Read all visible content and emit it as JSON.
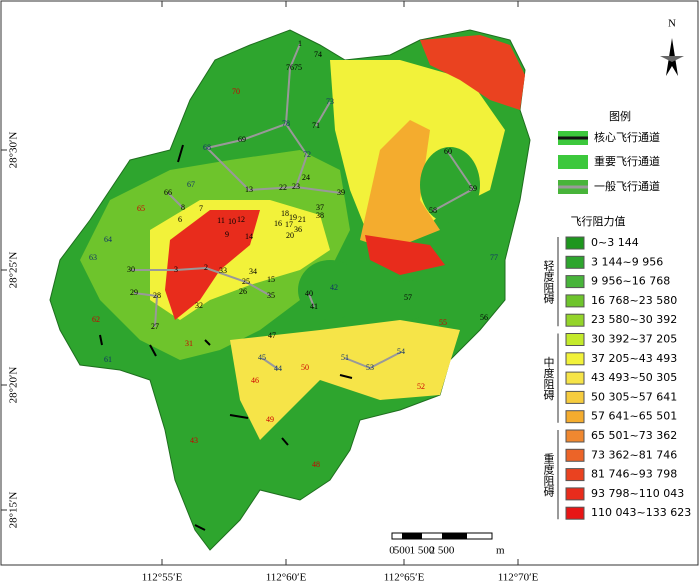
{
  "map": {
    "legend": {
      "title": "图例",
      "channels": [
        {
          "label": "核心飞行通道",
          "color": "#111111"
        },
        {
          "label": "重要飞行通道",
          "color": "#3cc83c"
        },
        {
          "label": "一般飞行通道",
          "color": "#9a9a9a"
        }
      ]
    },
    "resistance": {
      "title": "飞行阻力值",
      "classes": [
        {
          "label": "0~3 144",
          "color": "#1e961e"
        },
        {
          "label": "3 144~9 956",
          "color": "#2ea52e"
        },
        {
          "label": "9 956~16 768",
          "color": "#48b43a"
        },
        {
          "label": "16 768~23 580",
          "color": "#6ec42c"
        },
        {
          "label": "23 580~30 392",
          "color": "#94d42a"
        },
        {
          "label": "30 392~37 205",
          "color": "#c4ea2c"
        },
        {
          "label": "37 205~43 493",
          "color": "#f2f23a"
        },
        {
          "label": "43 493~50 305",
          "color": "#f6e448"
        },
        {
          "label": "50 305~57 641",
          "color": "#f6cc3e"
        },
        {
          "label": "57 641~65 501",
          "color": "#f4ac2e"
        },
        {
          "label": "65 501~73 362",
          "color": "#f08830"
        },
        {
          "label": "73 362~81 746",
          "color": "#ec6428"
        },
        {
          "label": "81 746~93 798",
          "color": "#ea4220"
        },
        {
          "label": "93 798~110 043",
          "color": "#e82c1c"
        },
        {
          "label": "110 043~133 623",
          "color": "#e81616"
        }
      ],
      "groups": [
        "轻度阻碍",
        "中度阻碍",
        "重度阻碍"
      ]
    },
    "axes": {
      "lat": [
        "28°30′N",
        "28°25′N",
        "28°20′N",
        "28°15′N"
      ],
      "lon": [
        "112°55′E",
        "112°60′E",
        "112°65′E",
        "112°70′E"
      ]
    },
    "scale": {
      "labels": [
        "0",
        "500",
        "1 500",
        "2 500",
        "m"
      ]
    },
    "north": "N",
    "nodes": [
      {
        "label": "1",
        "color": "#000"
      },
      {
        "label": "74",
        "color": "#000"
      },
      {
        "label": "76",
        "color": "#000"
      },
      {
        "label": "75",
        "color": "#000"
      },
      {
        "label": "70",
        "color": "#c00"
      },
      {
        "label": "73",
        "color": "#136"
      },
      {
        "label": "78",
        "color": "#136"
      },
      {
        "label": "71",
        "color": "#000"
      },
      {
        "label": "69",
        "color": "#000"
      },
      {
        "label": "68",
        "color": "#136"
      },
      {
        "label": "72",
        "color": "#136"
      },
      {
        "label": "24",
        "color": "#000"
      },
      {
        "label": "23",
        "color": "#000"
      },
      {
        "label": "22",
        "color": "#000"
      },
      {
        "label": "13",
        "color": "#000"
      },
      {
        "label": "39",
        "color": "#000"
      },
      {
        "label": "66",
        "color": "#000"
      },
      {
        "label": "67",
        "color": "#136"
      },
      {
        "label": "65",
        "color": "#c00"
      },
      {
        "label": "8",
        "color": "#000"
      },
      {
        "label": "7",
        "color": "#000"
      },
      {
        "label": "6",
        "color": "#000"
      },
      {
        "label": "11",
        "color": "#000"
      },
      {
        "label": "10",
        "color": "#000"
      },
      {
        "label": "12",
        "color": "#000"
      },
      {
        "label": "18",
        "color": "#000"
      },
      {
        "label": "16",
        "color": "#000"
      },
      {
        "label": "17",
        "color": "#000"
      },
      {
        "label": "19",
        "color": "#000"
      },
      {
        "label": "21",
        "color": "#000"
      },
      {
        "label": "36",
        "color": "#000"
      },
      {
        "label": "37",
        "color": "#000"
      },
      {
        "label": "38",
        "color": "#000"
      },
      {
        "label": "20",
        "color": "#000"
      },
      {
        "label": "14",
        "color": "#000"
      },
      {
        "label": "9",
        "color": "#000"
      },
      {
        "label": "64",
        "color": "#136"
      },
      {
        "label": "63",
        "color": "#136"
      },
      {
        "label": "42",
        "color": "#136"
      },
      {
        "label": "77",
        "color": "#136"
      },
      {
        "label": "30",
        "color": "#000"
      },
      {
        "label": "3",
        "color": "#000"
      },
      {
        "label": "2",
        "color": "#000"
      },
      {
        "label": "33",
        "color": "#000"
      },
      {
        "label": "25",
        "color": "#000"
      },
      {
        "label": "26",
        "color": "#000"
      },
      {
        "label": "34",
        "color": "#000"
      },
      {
        "label": "15",
        "color": "#000"
      },
      {
        "label": "35",
        "color": "#000"
      },
      {
        "label": "29",
        "color": "#000"
      },
      {
        "label": "28",
        "color": "#000"
      },
      {
        "label": "32",
        "color": "#000"
      },
      {
        "label": "40",
        "color": "#000"
      },
      {
        "label": "41",
        "color": "#000"
      },
      {
        "label": "57",
        "color": "#000"
      },
      {
        "label": "58",
        "color": "#000"
      },
      {
        "label": "59",
        "color": "#000"
      },
      {
        "label": "60",
        "color": "#000"
      },
      {
        "label": "56",
        "color": "#000"
      },
      {
        "label": "55",
        "color": "#c00"
      },
      {
        "label": "27",
        "color": "#000"
      },
      {
        "label": "62",
        "color": "#c00"
      },
      {
        "label": "31",
        "color": "#c00"
      },
      {
        "label": "47",
        "color": "#000"
      },
      {
        "label": "61",
        "color": "#136"
      },
      {
        "label": "45",
        "color": "#136"
      },
      {
        "label": "44",
        "color": "#136"
      },
      {
        "label": "50",
        "color": "#c00"
      },
      {
        "label": "46",
        "color": "#c00"
      },
      {
        "label": "51",
        "color": "#136"
      },
      {
        "label": "53",
        "color": "#136"
      },
      {
        "label": "54",
        "color": "#136"
      },
      {
        "label": "52",
        "color": "#c00"
      },
      {
        "label": "43",
        "color": "#c00"
      },
      {
        "label": "49",
        "color": "#c00"
      },
      {
        "label": "48",
        "color": "#c00"
      }
    ]
  }
}
